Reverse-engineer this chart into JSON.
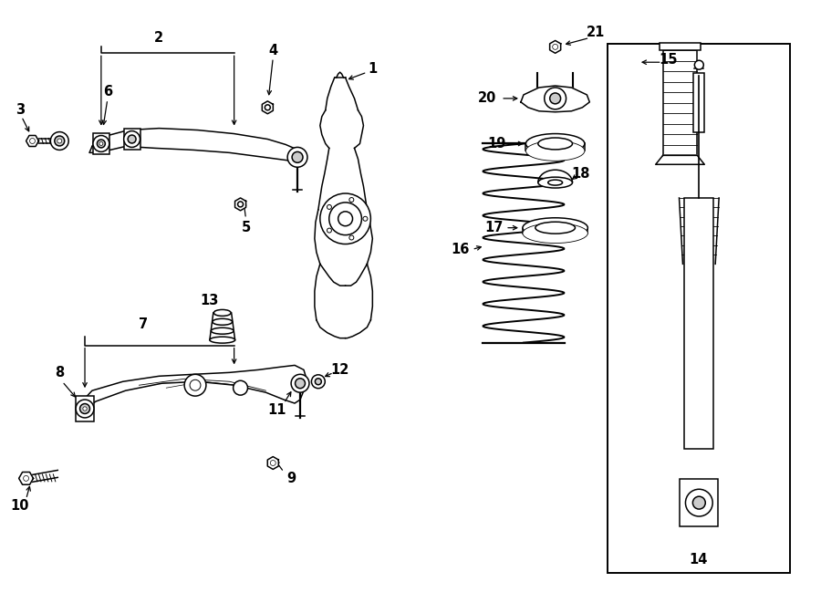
{
  "bg_color": "#ffffff",
  "line_color": "#000000",
  "fig_width": 9.0,
  "fig_height": 6.61,
  "dpi": 100,
  "label_fontsize": 10.5
}
